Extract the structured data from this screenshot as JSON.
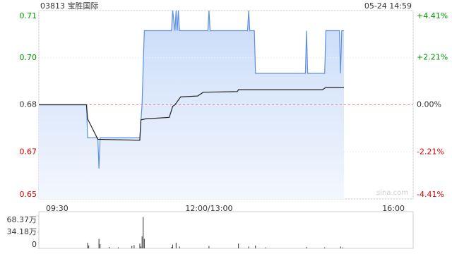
{
  "chart_data": [
    {
      "type": "line",
      "title": "03813 宝胜国际",
      "subtitle": "05-24 14:59",
      "watermark": "sina.com",
      "xlim": [
        0,
        330
      ],
      "xticks": [
        {
          "value": 0,
          "label": "09:30"
        },
        {
          "value": 150,
          "label": "12:00/13:00"
        },
        {
          "value": 330,
          "label": "16:00"
        }
      ],
      "ylim": [
        0.65,
        0.71
      ],
      "yticks": [
        0.65,
        {
          "value": 0.665,
          "label": "0.67"
        },
        0.68,
        {
          "value": 0.695,
          "label": "0.70"
        },
        0.71
      ],
      "y2lim": [
        -4.41,
        4.41
      ],
      "y2ticks": [
        {
          "value": -4.41,
          "label": "-4.41%"
        },
        {
          "value": -2.21,
          "label": "-2.21%"
        },
        {
          "value": 0,
          "label": "0.00%"
        },
        {
          "value": 2.21,
          "label": "+2.21%"
        },
        {
          "value": 4.41,
          "label": "+4.41%"
        }
      ],
      "up_color": "#009900",
      "down_color": "#dd0000",
      "flat_color": "#333333",
      "grid": true,
      "series": [
        {
          "color": "#5b8fe0",
          "x": [
            0,
            42,
            43,
            52,
            53,
            54,
            89,
            90,
            91,
            92,
            93,
            117,
            118,
            120,
            121,
            122,
            123,
            124,
            149,
            150,
            151,
            184,
            185,
            186,
            190,
            191,
            235,
            236,
            237,
            252,
            253,
            265,
            266,
            267,
            269
          ],
          "values": [
            0.68,
            0.68,
            0.6695,
            0.6695,
            0.6597,
            0.6695,
            0.6695,
            0.675,
            0.68,
            0.6925,
            0.7036,
            0.7036,
            0.71,
            0.7036,
            0.71,
            0.7036,
            0.71,
            0.7036,
            0.7036,
            0.71,
            0.7036,
            0.7036,
            0.71,
            0.7036,
            0.7036,
            0.69,
            0.69,
            0.7036,
            0.69,
            0.69,
            0.7036,
            0.7036,
            0.69,
            0.7036,
            0.7036
          ]
        },
        {
          "color": "#222222",
          "x": [
            0,
            42,
            43,
            52,
            89,
            90,
            94,
            115,
            118,
            120,
            122,
            125,
            140,
            145,
            175,
            176,
            250,
            253,
            269
          ],
          "values": [
            0.68,
            0.68,
            0.6755,
            0.669,
            0.6687,
            0.6752,
            0.6755,
            0.676,
            0.6795,
            0.68,
            0.681,
            0.6825,
            0.6828,
            0.684,
            0.6842,
            0.6848,
            0.6848,
            0.6855,
            0.6855
          ]
        }
      ]
    },
    {
      "type": "bar",
      "color": "#333333",
      "xlim": [
        0,
        330
      ],
      "ylim": [
        0,
        68.37
      ],
      "yticks": [
        0,
        {
          "value": 34.18,
          "label": "34.18万"
        },
        {
          "value": 68.37,
          "label": "68.37万"
        }
      ],
      "x": [
        43,
        44,
        53,
        54,
        62,
        70,
        82,
        84,
        89,
        90,
        91,
        92,
        93,
        117,
        118,
        121,
        124,
        150,
        176,
        185,
        191,
        200,
        236,
        252,
        266,
        268
      ],
      "values": [
        12,
        6,
        20,
        9,
        3,
        2,
        5,
        7,
        10,
        4,
        25,
        66,
        20,
        3,
        8,
        12,
        4,
        5,
        10,
        4,
        6,
        2,
        3,
        2,
        4,
        2
      ]
    }
  ]
}
